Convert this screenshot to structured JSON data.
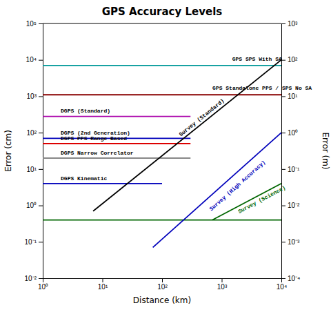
{
  "chart_data": {
    "type": "line",
    "title": "GPS Accuracy Levels",
    "x_label": "Distance (km)",
    "y_label": "Error (cm)",
    "y2_label": "Error (m)",
    "log": true,
    "grid": false,
    "xlim": [
      1,
      10000
    ],
    "xticks": [
      {
        "value": 1,
        "label": "10⁰"
      },
      {
        "value": 10,
        "label": "10¹"
      },
      {
        "value": 100,
        "label": "10²"
      },
      {
        "value": 1000,
        "label": "10³"
      },
      {
        "value": 10000,
        "label": "10⁴"
      }
    ],
    "ylim": [
      0.01,
      100000
    ],
    "yticks": [
      {
        "value": 0.01,
        "label": "10⁻²"
      },
      {
        "value": 0.1,
        "label": "10⁻¹"
      },
      {
        "value": 1,
        "label": "10⁰"
      },
      {
        "value": 10,
        "label": "10¹"
      },
      {
        "value": 100,
        "label": "10²"
      },
      {
        "value": 1000,
        "label": "10³"
      },
      {
        "value": 10000,
        "label": "10⁴"
      },
      {
        "value": 100000,
        "label": "10⁵"
      }
    ],
    "y2lim": [
      0.0001,
      1000
    ],
    "y2ticks": [
      {
        "value": 0.0001,
        "label": "10⁻⁴"
      },
      {
        "value": 0.001,
        "label": "10⁻³"
      },
      {
        "value": 0.01,
        "label": "10⁻²"
      },
      {
        "value": 0.1,
        "label": "10⁻¹"
      },
      {
        "value": 1,
        "label": "10⁰"
      },
      {
        "value": 10,
        "label": "10¹"
      },
      {
        "value": 100,
        "label": "10²"
      },
      {
        "value": 1000,
        "label": "10³"
      }
    ],
    "series": [
      {
        "color": "#009999",
        "x": [
          1,
          10000
        ],
        "values": [
          7000,
          7000
        ]
      },
      {
        "color": "#880000",
        "x": [
          1,
          10000
        ],
        "values": [
          1100,
          1100
        ]
      },
      {
        "color": "#aa00aa",
        "x": [
          1,
          300
        ],
        "values": [
          280,
          280
        ]
      },
      {
        "color": "#0000bb",
        "x": [
          1,
          300
        ],
        "values": [
          70,
          70
        ]
      },
      {
        "color": "#dd0000",
        "x": [
          1,
          300
        ],
        "values": [
          50,
          50
        ]
      },
      {
        "color": "#888888",
        "x": [
          1,
          300
        ],
        "values": [
          20,
          20
        ]
      },
      {
        "color": "#0000bb",
        "x": [
          1,
          100
        ],
        "values": [
          4,
          4
        ]
      },
      {
        "color": "#006600",
        "x": [
          1,
          10000
        ],
        "values": [
          0.4,
          0.4
        ]
      },
      {
        "color": "#000000",
        "x": [
          7,
          10000
        ],
        "values": [
          0.7,
          10000
        ],
        "annotation": {
          "text": "Survey (Standard)",
          "x": 500,
          "y": 220
        }
      },
      {
        "color": "#0000bb",
        "x": [
          70,
          10000
        ],
        "values": [
          0.07,
          100
        ],
        "annotation": {
          "text": "Survey (High Accuracy)",
          "x": 2000,
          "y": 3
        }
      },
      {
        "color": "#006600",
        "x": [
          700,
          10000
        ],
        "values": [
          0.4,
          4
        ],
        "annotation": {
          "text": "Survey (Science)",
          "x": 5000,
          "y": 1.2
        }
      }
    ],
    "annotations": [
      {
        "text": "GPS SPS With SA",
        "x": 1500,
        "y": 9000
      },
      {
        "text": "GPS Standalone PPS / SPS No SA",
        "x": 700,
        "y": 1400
      },
      {
        "text": "DGPS (Standard)",
        "x": 2,
        "y": 330
      },
      {
        "text": "DGPS (2nd Generation)",
        "x": 2,
        "y": 82
      },
      {
        "text": "DGPS PPS Range Based",
        "x": 2,
        "y": 57
      },
      {
        "text": "DGPS Narrow Correlator",
        "x": 2,
        "y": 23
      },
      {
        "text": "DGPS Kinematic",
        "x": 2,
        "y": 4.6
      }
    ]
  }
}
